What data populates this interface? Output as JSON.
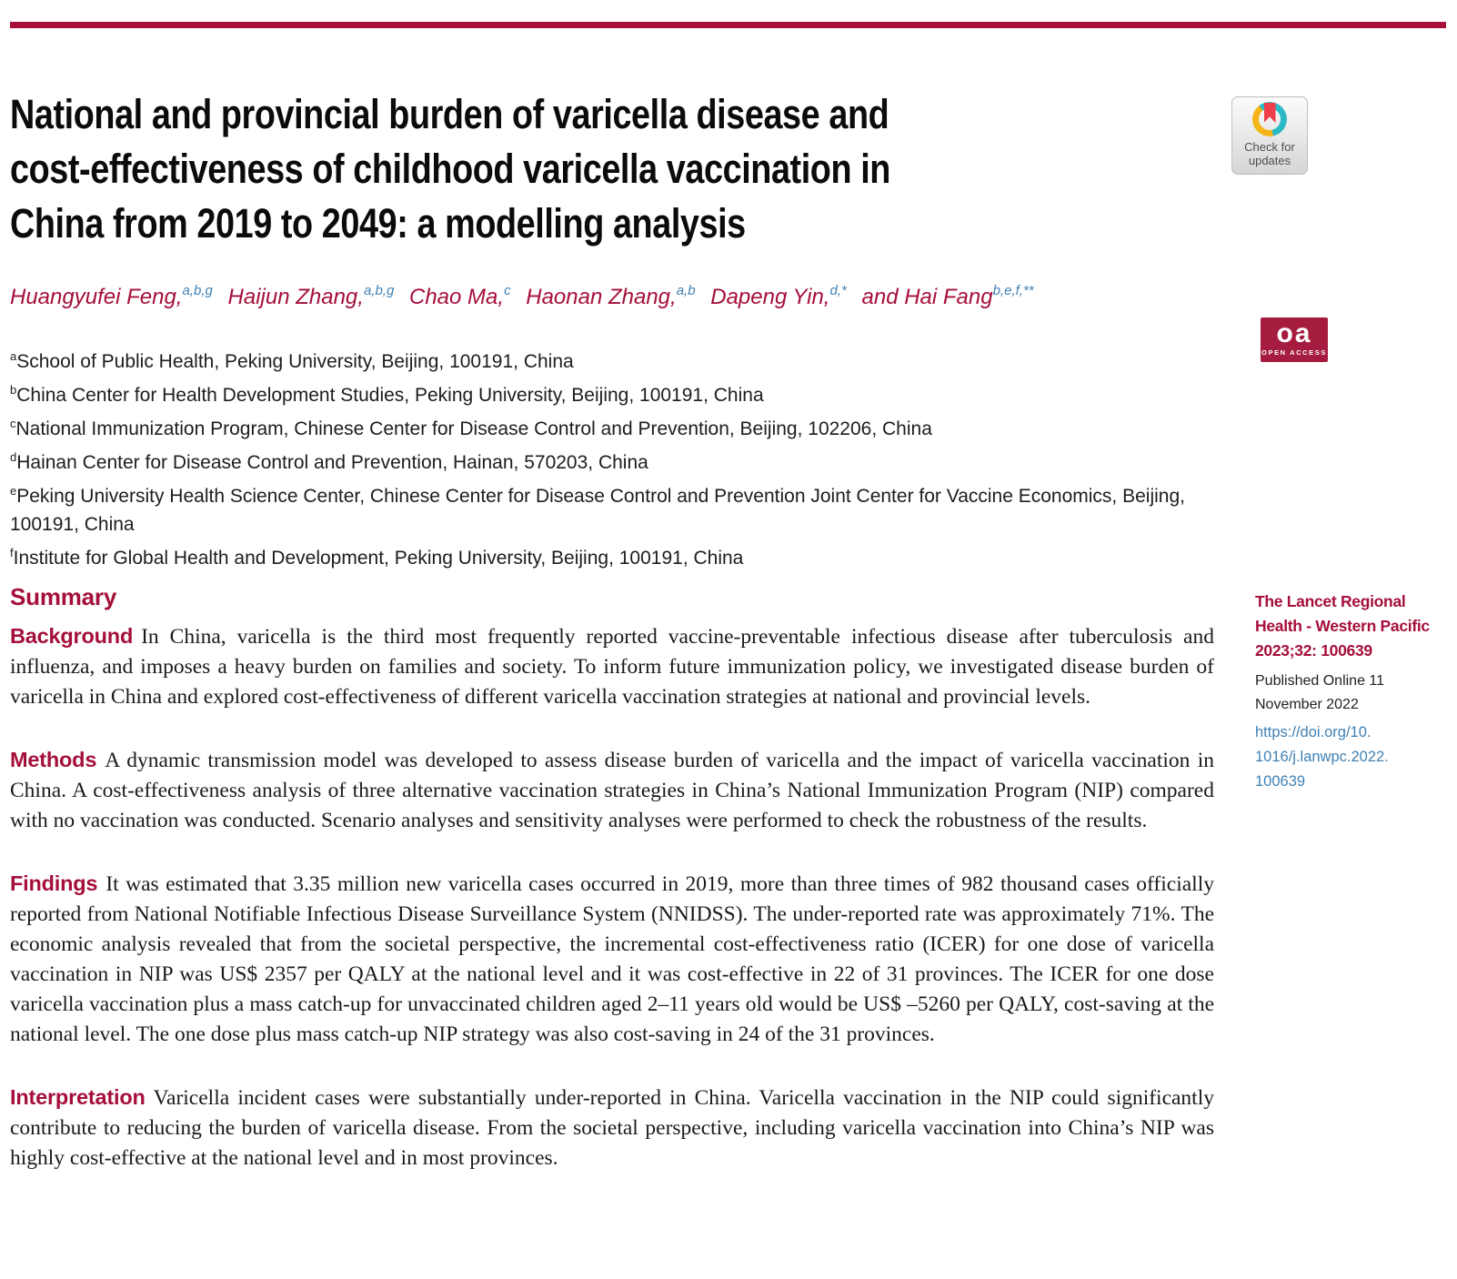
{
  "colors": {
    "accent": "#a50f3a",
    "link_blue": "#3f81b5",
    "crossmark_teal": "#2db8c5",
    "crossmark_yellow": "#f3b517",
    "crossmark_red": "#ed3e49"
  },
  "article": {
    "title_lines": [
      "National and provincial burden of varicella disease and",
      "cost-effectiveness of childhood varicella vaccination in",
      "China from 2019 to 2049: a modelling analysis"
    ],
    "authors": [
      {
        "name": "Huangyufei Feng,",
        "sup": "a,b,g"
      },
      {
        "name": "Haijun Zhang,",
        "sup": "a,b,g"
      },
      {
        "name": "Chao Ma,",
        "sup": "c"
      },
      {
        "name": "Haonan Zhang,",
        "sup": "a,b"
      },
      {
        "name": "Dapeng Yin,",
        "sup": "d,*"
      },
      {
        "name": "and Hai Fang",
        "sup": "b,e,f,**"
      }
    ],
    "affiliations": [
      {
        "marker": "a",
        "text": "School of Public Health, Peking University, Beijing, 100191, China"
      },
      {
        "marker": "b",
        "text": "China Center for Health Development Studies, Peking University, Beijing, 100191, China"
      },
      {
        "marker": "c",
        "text": "National Immunization Program, Chinese Center for Disease Control and Prevention, Beijing, 102206, China"
      },
      {
        "marker": "d",
        "text": "Hainan Center for Disease Control and Prevention, Hainan, 570203, China"
      },
      {
        "marker": "e",
        "text": "Peking University Health Science Center, Chinese Center for Disease Control and Prevention Joint Center for Vaccine Economics, Beijing, 100191, China"
      },
      {
        "marker": "f",
        "text": "Institute for Global Health and Development, Peking University, Beijing, 100191, China"
      }
    ]
  },
  "badges": {
    "check_updates_label": "Check for updates",
    "open_access": {
      "abbr": "oa",
      "label": "OPEN ACCESS"
    }
  },
  "sidebar": {
    "citation_lines": [
      "The Lancet Regional",
      "Health - Western Pacific",
      "2023;32: 100639"
    ],
    "published_lines": [
      "Published Online 11",
      "November 2022"
    ],
    "doi_lines": [
      "https://doi.org/10.",
      "1016/j.lanwpc.2022.",
      "100639"
    ]
  },
  "summary": {
    "heading": "Summary",
    "sections": [
      {
        "label": "Background",
        "text": "In China, varicella is the third most frequently reported vaccine-preventable infectious disease after tuberculosis and influenza, and imposes a heavy burden on families and society. To inform future immunization policy, we investigated disease burden of varicella in China and explored cost-effectiveness of different varicella vaccination strategies at national and provincial levels."
      },
      {
        "label": "Methods",
        "text": "A dynamic transmission model was developed to assess disease burden of varicella and the impact of varicella vaccination in China. A cost-effectiveness analysis of three alternative vaccination strategies in China’s National Immunization Program (NIP) compared with no vaccination was conducted. Scenario analyses and sensitivity analyses were performed to check the robustness of the results."
      },
      {
        "label": "Findings",
        "text": "It was estimated that 3.35 million new varicella cases occurred in 2019, more than three times of 982 thousand cases officially reported from National Notifiable Infectious Disease Surveillance System (NNIDSS). The under-reported rate was approximately 71%. The economic analysis revealed that from the societal perspective, the incremental cost-effectiveness ratio (ICER) for one dose of varicella vaccination in NIP was US$ 2357 per QALY at the national level and it was cost-effective in 22 of 31 provinces. The ICER for one dose varicella vaccination plus a mass catch-up for unvaccinated children aged 2–11 years old would be US$ –5260 per QALY, cost-saving at the national level. The one dose plus mass catch-up NIP strategy was also cost-saving in 24 of the 31 provinces."
      },
      {
        "label": "Interpretation",
        "text": "Varicella incident cases were substantially under-reported in China. Varicella vaccination in the NIP could significantly contribute to reducing the burden of varicella disease. From the societal perspective, including varicella vaccination into China’s NIP was highly cost-effective at the national level and in most provinces."
      }
    ]
  }
}
